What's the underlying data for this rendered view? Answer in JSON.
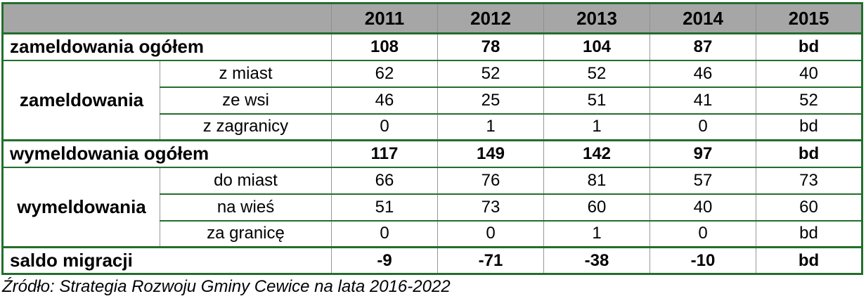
{
  "chart_data": {
    "type": "table",
    "columns": [
      "2011",
      "2012",
      "2013",
      "2014",
      "2015"
    ],
    "rows": [
      {
        "label": "zameldowania ogółem",
        "kind": "total",
        "values": [
          "108",
          "78",
          "104",
          "87",
          "bd"
        ]
      },
      {
        "group": "zameldowania",
        "label": "z miast",
        "kind": "sub",
        "values": [
          "62",
          "52",
          "52",
          "46",
          "40"
        ]
      },
      {
        "label": "ze wsi",
        "kind": "sub",
        "values": [
          "46",
          "25",
          "51",
          "41",
          "52"
        ]
      },
      {
        "label": "z zagranicy",
        "kind": "sub",
        "values": [
          "0",
          "1",
          "1",
          "0",
          "bd"
        ]
      },
      {
        "label": "wymeldowania ogółem",
        "kind": "total",
        "values": [
          "117",
          "149",
          "142",
          "97",
          "bd"
        ]
      },
      {
        "group": "wymeldowania",
        "label": "do miast",
        "kind": "sub",
        "values": [
          "66",
          "76",
          "81",
          "57",
          "73"
        ]
      },
      {
        "label": "na wieś",
        "kind": "sub",
        "values": [
          "51",
          "73",
          "60",
          "40",
          "60"
        ]
      },
      {
        "label": "za granicę",
        "kind": "sub",
        "values": [
          "0",
          "0",
          "1",
          "0",
          "bd"
        ]
      },
      {
        "label": "saldo migracji",
        "kind": "total",
        "values": [
          "-9",
          "-71",
          "-38",
          "-10",
          "bd"
        ]
      }
    ],
    "na_value_meaning": "bd",
    "legend_position": "none",
    "grid": "on"
  },
  "source_caption": "Źródło: Strategia Rozwoju Gminy Cewice na lata 2016-2022",
  "colors": {
    "header_background": "#a6a6a6",
    "border_green": "#236e2d",
    "border_gray": "#969696",
    "text": "#000000",
    "page_background": "#ffffff"
  }
}
